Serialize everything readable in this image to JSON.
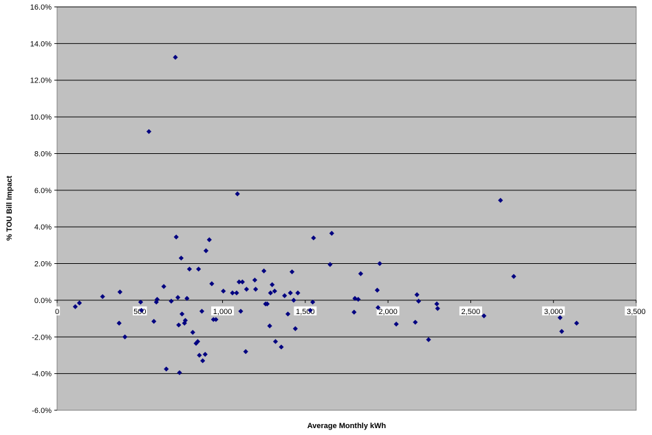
{
  "chart_data": {
    "type": "scatter",
    "title": "",
    "xlabel": "Average Monthly kWh",
    "ylabel": "% TOU Bill Impact",
    "xlim": [
      0,
      3500
    ],
    "ylim": [
      -6,
      16
    ],
    "x_ticks": [
      0,
      500,
      1000,
      1500,
      2000,
      2500,
      3000,
      3500
    ],
    "x_tick_labels": [
      "0",
      "500",
      "1,000",
      "1,500",
      "2,000",
      "2,500",
      "3,000",
      "3,500"
    ],
    "y_ticks": [
      -6,
      -4,
      -2,
      0,
      2,
      4,
      6,
      8,
      10,
      12,
      14,
      16
    ],
    "y_tick_labels": [
      "-6.0%",
      "-4.0%",
      "-2.0%",
      "0.0%",
      "2.0%",
      "4.0%",
      "6.0%",
      "8.0%",
      "10.0%",
      "12.0%",
      "14.0%",
      "16.0%"
    ],
    "grid": {
      "horizontal": true,
      "vertical": false
    },
    "legend": "none",
    "colors": {
      "plot_background": "#c0c0c0",
      "gridline": "#000000",
      "marker": "#000080"
    },
    "series": [
      {
        "x": [
          110,
          135,
          275,
          375,
          380,
          410,
          505,
          510,
          555,
          585,
          600,
          605,
          645,
          660,
          690,
          715,
          720,
          730,
          735,
          740,
          750,
          755,
          770,
          775,
          785,
          800,
          820,
          840,
          850,
          855,
          860,
          875,
          880,
          895,
          900,
          920,
          935,
          945,
          960,
          1005,
          1060,
          1085,
          1090,
          1100,
          1110,
          1120,
          1140,
          1145,
          1195,
          1200,
          1250,
          1260,
          1270,
          1285,
          1290,
          1300,
          1315,
          1320,
          1355,
          1375,
          1395,
          1410,
          1420,
          1430,
          1440,
          1455,
          1530,
          1545,
          1550,
          1650,
          1660,
          1795,
          1800,
          1820,
          1835,
          1935,
          1940,
          1950,
          2050,
          2165,
          2175,
          2185,
          2245,
          2295,
          2300,
          2580,
          2680,
          2760,
          3040,
          3050,
          3140
        ],
        "y": [
          -0.35,
          -0.15,
          0.2,
          -1.25,
          0.45,
          -2.0,
          -0.1,
          -0.55,
          9.2,
          -1.15,
          -0.1,
          0.05,
          0.75,
          -3.75,
          -0.05,
          13.25,
          3.45,
          0.15,
          -1.35,
          -3.95,
          2.3,
          -0.75,
          -1.25,
          -1.1,
          0.1,
          1.7,
          -1.75,
          -2.35,
          -2.25,
          1.7,
          -3.0,
          -0.6,
          -3.3,
          -2.95,
          2.7,
          3.3,
          0.9,
          -1.05,
          -1.05,
          0.5,
          0.4,
          0.4,
          5.8,
          1.0,
          -0.6,
          1.0,
          -2.8,
          0.6,
          1.1,
          0.6,
          1.6,
          -0.2,
          -0.2,
          -1.4,
          0.4,
          0.85,
          0.5,
          -2.25,
          -2.55,
          0.25,
          -0.75,
          0.4,
          1.55,
          0.0,
          -1.55,
          0.4,
          -0.55,
          -0.1,
          3.4,
          1.95,
          3.65,
          -0.65,
          0.1,
          0.05,
          1.45,
          0.55,
          -0.4,
          2.0,
          -1.3,
          -1.2,
          0.3,
          -0.05,
          -2.15,
          -0.2,
          -0.45,
          -0.85,
          5.45,
          1.3,
          -0.95,
          -1.7,
          -1.25
        ]
      }
    ]
  }
}
